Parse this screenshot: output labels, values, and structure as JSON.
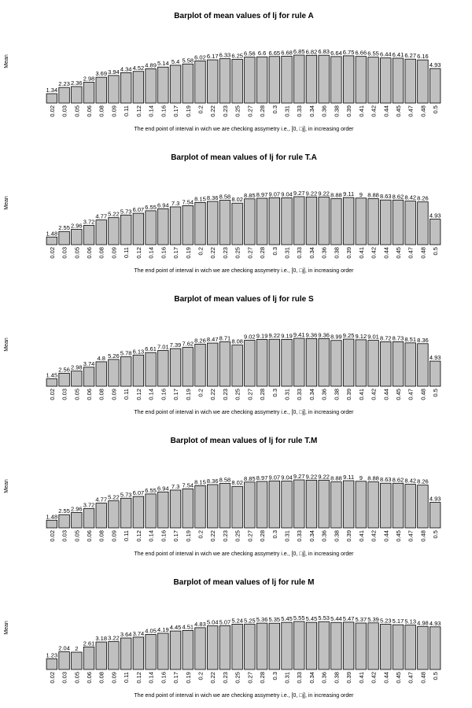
{
  "colors": {
    "bar_fill": "#c0c0c0",
    "bar_stroke": "#000000",
    "background": "#ffffff"
  },
  "chart_data": [
    {
      "type": "bar",
      "title": "Barplot of mean values of lj for rule A",
      "xlabel": "The end point of interval in wich we are checking assymetry i.e., [0, □j], in increasing order",
      "ylabel": "Mean",
      "categories": [
        "0.02",
        "0.03",
        "0.05",
        "0.06",
        "0.08",
        "0.09",
        "0.11",
        "0.12",
        "0.14",
        "0.16",
        "0.17",
        "0.19",
        "0.2",
        "0.22",
        "0.23",
        "0.25",
        "0.27",
        "0.28",
        "0.3",
        "0.31",
        "0.33",
        "0.34",
        "0.36",
        "0.38",
        "0.39",
        "0.41",
        "0.42",
        "0.44",
        "0.45",
        "0.47",
        "0.48",
        "0.5"
      ],
      "values": [
        1.34,
        2.23,
        2.36,
        2.98,
        3.69,
        3.94,
        4.34,
        4.52,
        4.89,
        5.14,
        5.4,
        5.58,
        6.02,
        6.17,
        6.33,
        6.25,
        6.56,
        6.6,
        6.65,
        6.68,
        6.85,
        6.82,
        6.83,
        6.64,
        6.75,
        6.66,
        6.55,
        6.44,
        6.41,
        6.27,
        6.16,
        4.93
      ],
      "labels": [
        "1.34",
        "2.23",
        "2.36",
        "2.98",
        "3.69",
        "3.94",
        "4.34",
        "4.52",
        "4.89",
        "5.14",
        "5.4",
        "5.58",
        "6.02",
        "6.17",
        "6.33",
        "6.25",
        "6.56",
        "6.6",
        "6.65",
        "6.68",
        "6.85",
        "6.82",
        "6.83",
        "6.64",
        "6.75",
        "6.66",
        "6.55",
        "6.44",
        "6.41",
        "6.27",
        "6.16",
        "4.93"
      ]
    },
    {
      "type": "bar",
      "title": "Barplot of mean values of lj for rule T.A",
      "xlabel": "The end point of interval in wich we are checking assymetry i.e., [0, □j], in increasing order",
      "ylabel": "Mean",
      "categories": [
        "0.02",
        "0.03",
        "0.05",
        "0.06",
        "0.08",
        "0.09",
        "0.11",
        "0.12",
        "0.14",
        "0.16",
        "0.17",
        "0.19",
        "0.2",
        "0.22",
        "0.23",
        "0.25",
        "0.27",
        "0.28",
        "0.3",
        "0.31",
        "0.33",
        "0.34",
        "0.36",
        "0.38",
        "0.39",
        "0.41",
        "0.42",
        "0.44",
        "0.45",
        "0.47",
        "0.48",
        "0.5"
      ],
      "values": [
        1.48,
        2.55,
        2.96,
        3.72,
        4.77,
        5.22,
        5.73,
        6.07,
        6.55,
        6.94,
        7.3,
        7.54,
        8.15,
        8.36,
        8.58,
        8.02,
        8.85,
        8.97,
        9.07,
        9.04,
        9.27,
        9.22,
        9.22,
        8.88,
        9.11,
        9,
        8.88,
        8.63,
        8.62,
        8.42,
        8.26,
        4.93
      ],
      "labels": [
        "1.48",
        "2.55",
        "2.96",
        "3.72",
        "4.77",
        "5.22",
        "5.73",
        "6.07",
        "6.55",
        "6.94",
        "7.3",
        "7.54",
        "8.15",
        "8.36",
        "8.58",
        "8.02",
        "8.85",
        "8.97",
        "9.07",
        "9.04",
        "9.27",
        "9.22",
        "9.22",
        "8.88",
        "9.11",
        "9",
        "8.88",
        "8.63",
        "8.62",
        "8.42",
        "8.26",
        "4.93"
      ]
    },
    {
      "type": "bar",
      "title": "Barplot of mean values of lj for rule S",
      "xlabel": "The end point of interval in wich we are checking assymetry i.e., [0, □j], in increasing order",
      "ylabel": "Mean",
      "categories": [
        "0.02",
        "0.03",
        "0.05",
        "0.06",
        "0.08",
        "0.09",
        "0.11",
        "0.12",
        "0.14",
        "0.16",
        "0.17",
        "0.19",
        "0.2",
        "0.22",
        "0.23",
        "0.25",
        "0.27",
        "0.28",
        "0.3",
        "0.31",
        "0.33",
        "0.34",
        "0.36",
        "0.38",
        "0.39",
        "0.41",
        "0.42",
        "0.44",
        "0.45",
        "0.47",
        "0.48",
        "0.5"
      ],
      "values": [
        1.45,
        2.56,
        2.98,
        3.74,
        4.8,
        5.26,
        5.78,
        6.13,
        6.61,
        7.01,
        7.39,
        7.62,
        8.26,
        8.47,
        8.71,
        8.08,
        9.02,
        9.19,
        9.22,
        9.19,
        9.41,
        9.36,
        9.36,
        8.99,
        9.25,
        9.12,
        9.01,
        8.72,
        8.73,
        8.51,
        8.36,
        4.93
      ],
      "labels": [
        "1.45",
        "2.56",
        "2.98",
        "3.74",
        "4.8",
        "5.26",
        "5.78",
        "6.13",
        "6.61",
        "7.01",
        "7.39",
        "7.62",
        "8.26",
        "8.47",
        "8.71",
        "8.08",
        "9.02",
        "9.19",
        "9.22",
        "9.19",
        "9.41",
        "9.36",
        "9.36",
        "8.99",
        "9.25",
        "9.12",
        "9.01",
        "8.72",
        "8.73",
        "8.51",
        "8.36",
        "4.93"
      ]
    },
    {
      "type": "bar",
      "title": "Barplot of mean values of lj for rule T.M",
      "xlabel": "The end point of interval in wich we are checking assymetry i.e., [0, □j], in increasing order",
      "ylabel": "Mean",
      "categories": [
        "0.02",
        "0.03",
        "0.05",
        "0.06",
        "0.08",
        "0.09",
        "0.11",
        "0.12",
        "0.14",
        "0.16",
        "0.17",
        "0.19",
        "0.2",
        "0.22",
        "0.23",
        "0.25",
        "0.27",
        "0.28",
        "0.3",
        "0.31",
        "0.33",
        "0.34",
        "0.36",
        "0.38",
        "0.39",
        "0.41",
        "0.42",
        "0.44",
        "0.45",
        "0.47",
        "0.48",
        "0.5"
      ],
      "values": [
        1.48,
        2.55,
        2.96,
        3.72,
        4.77,
        5.22,
        5.73,
        6.07,
        6.55,
        6.94,
        7.3,
        7.54,
        8.15,
        8.36,
        8.58,
        8.02,
        8.85,
        8.97,
        9.07,
        9.04,
        9.27,
        9.22,
        9.22,
        8.88,
        9.11,
        9,
        8.88,
        8.63,
        8.62,
        8.42,
        8.26,
        4.93
      ],
      "labels": [
        "1.48",
        "2.55",
        "2.96",
        "3.72",
        "4.77",
        "5.22",
        "5.73",
        "6.07",
        "6.55",
        "6.94",
        "7.3",
        "7.54",
        "8.15",
        "8.36",
        "8.58",
        "8.02",
        "8.85",
        "8.97",
        "9.07",
        "9.04",
        "9.27",
        "9.22",
        "9.22",
        "8.88",
        "9.11",
        "9",
        "8.88",
        "8.63",
        "8.62",
        "8.42",
        "8.26",
        "4.93"
      ]
    },
    {
      "type": "bar",
      "title": "Barplot of mean values of lj for rule M",
      "xlabel": "The end point of interval in wich we are checking assymetry i.e., [0, □j], in increasing order",
      "ylabel": "Mean",
      "categories": [
        "0.02",
        "0.03",
        "0.05",
        "0.06",
        "0.08",
        "0.09",
        "0.11",
        "0.12",
        "0.14",
        "0.16",
        "0.17",
        "0.19",
        "0.2",
        "0.22",
        "0.23",
        "0.25",
        "0.27",
        "0.28",
        "0.3",
        "0.31",
        "0.33",
        "0.34",
        "0.36",
        "0.38",
        "0.39",
        "0.41",
        "0.42",
        "0.44",
        "0.45",
        "0.47",
        "0.48",
        "0.5"
      ],
      "values": [
        1.23,
        2.04,
        2,
        2.61,
        3.18,
        3.22,
        3.64,
        3.74,
        4.05,
        4.19,
        4.45,
        4.51,
        4.83,
        5.04,
        5.07,
        5.24,
        5.25,
        5.36,
        5.35,
        5.45,
        5.55,
        5.45,
        5.53,
        5.44,
        5.47,
        5.37,
        5.39,
        5.23,
        5.17,
        5.13,
        4.98,
        4.93
      ],
      "labels": [
        "1.23",
        "2.04",
        "2",
        "2.61",
        "3.18",
        "3.22",
        "3.64",
        "3.74",
        "4.05",
        "4.19",
        "4.45",
        "4.51",
        "4.83",
        "5.04",
        "5.07",
        "5.24",
        "5.25",
        "5.36",
        "5.35",
        "5.45",
        "5.55",
        "5.45",
        "5.53",
        "5.44",
        "5.47",
        "5.37",
        "5.39",
        "5.23",
        "5.17",
        "5.13",
        "4.98",
        "4.93"
      ]
    }
  ]
}
